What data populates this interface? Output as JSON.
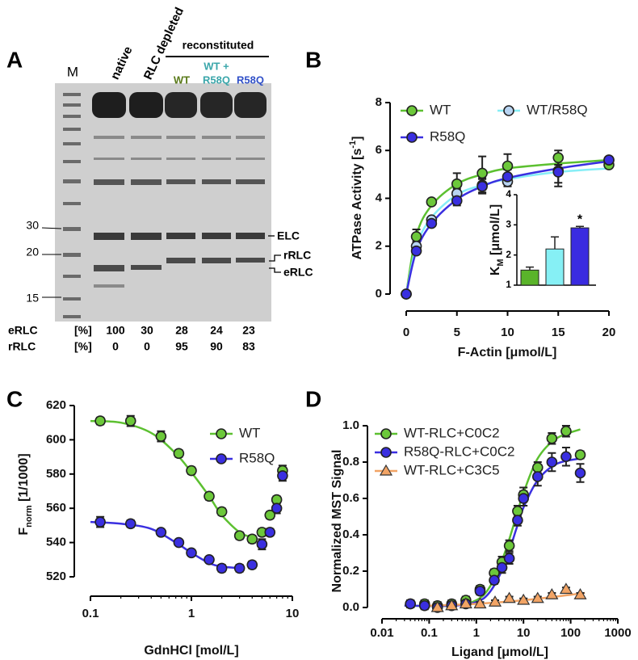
{
  "gel": {
    "panel_label": "A",
    "marker_label": "M",
    "lanes": [
      "native",
      "RLC depleted"
    ],
    "group_label": "reconstituted",
    "group_lanes": [
      [
        "WT"
      ],
      [
        "WT +",
        "R58Q"
      ],
      [
        "R58Q"
      ]
    ],
    "marker_sizes": [
      "30",
      "20",
      "15"
    ],
    "band_labels": [
      "ELC",
      "rRLC",
      "eRLC"
    ],
    "table": {
      "rows": [
        [
          "eRLC",
          "[%]",
          100,
          30,
          28,
          24,
          23
        ],
        [
          "rRLC",
          "[%]",
          0,
          0,
          95,
          90,
          83
        ]
      ]
    }
  },
  "chart_data": [
    {
      "type": "scatter",
      "panel_label": "B",
      "x_label": "F-Actin [μmol/L]",
      "y_label": [
        "ATPase Activity [s",
        "-1",
        "]"
      ],
      "y_label_script": "sup",
      "xlim": [
        0,
        20
      ],
      "ylim": [
        0,
        8
      ],
      "xticks": [
        0,
        5,
        10,
        15,
        20
      ],
      "yticks": [
        0,
        2,
        4,
        6,
        8
      ],
      "legend": "top-left",
      "series": [
        {
          "name": "WT",
          "color": "#6cc83a",
          "line_color": "#5cc030",
          "marker": "circle",
          "x": [
            0,
            1,
            2.5,
            5,
            7.5,
            10,
            15,
            20
          ],
          "values": [
            0,
            2.4,
            3.85,
            4.6,
            5.05,
            5.35,
            5.7,
            5.4
          ],
          "errors": [
            0,
            0.3,
            0.1,
            0.45,
            0.7,
            0.5,
            0.3,
            0.1
          ],
          "fit": {
            "x": [
              0,
              1,
              2.5,
              5,
              7.5,
              10,
              15,
              20
            ],
            "values": [
              0,
              2.45,
              3.7,
              4.6,
              5.0,
              5.25,
              5.45,
              5.6
            ]
          }
        },
        {
          "name": "WT/R58Q",
          "color": "#b8d4f2",
          "line_color": "#86eef6",
          "marker": "circle",
          "x": [
            0,
            1,
            2.5,
            5,
            7.5,
            10,
            15,
            20
          ],
          "values": [
            0,
            2.0,
            3.1,
            4.2,
            4.55,
            4.7,
            5.15,
            5.6
          ],
          "errors": [
            0,
            0.2,
            0.1,
            0.2,
            0.3,
            0.2,
            0.5,
            0.1
          ],
          "fit": {
            "x": [
              0,
              1,
              2.5,
              5,
              7.5,
              10,
              15,
              20
            ],
            "values": [
              0,
              2.0,
              3.2,
              4.15,
              4.55,
              4.8,
              5.1,
              5.25
            ]
          }
        },
        {
          "name": "R58Q",
          "color": "#3a2fe0",
          "line_color": "#3a2fe0",
          "marker": "circle",
          "x": [
            0,
            1,
            2.5,
            5,
            7.5,
            10,
            15,
            20
          ],
          "values": [
            0,
            1.8,
            2.95,
            3.9,
            4.5,
            4.9,
            5.1,
            5.6
          ],
          "errors": [
            0,
            0.1,
            0.1,
            0.2,
            0.3,
            0.3,
            0.6,
            0.1
          ],
          "fit": {
            "x": [
              0,
              1,
              2.5,
              5,
              7.5,
              10,
              15,
              20
            ],
            "values": [
              0,
              1.8,
              2.95,
              3.95,
              4.5,
              4.85,
              5.25,
              5.55
            ]
          }
        }
      ]
    },
    {
      "type": "bar",
      "y_label": [
        "K",
        "M",
        " [μmol/L]"
      ],
      "y_label_script": "sub",
      "categories": [
        null,
        null,
        null
      ],
      "values": [
        1.5,
        2.2,
        2.9
      ],
      "errors": [
        0.1,
        0.4,
        0.05
      ],
      "colors": [
        "#5ab42a",
        "#86f0f5",
        "#3a2be0"
      ],
      "ylim": [
        1,
        4
      ],
      "yticks": [
        1,
        2,
        3,
        4
      ],
      "annotation": "*"
    },
    {
      "type": "scatter",
      "panel_label": "C",
      "x_label": "GdnHCl [mol/L]",
      "y_label": [
        "F",
        "norm",
        " [1/1000]"
      ],
      "y_label_script": "sub",
      "xscale": "log",
      "xlim": [
        0.1,
        10
      ],
      "ylim": [
        515,
        625
      ],
      "xticks": [
        0.1,
        1,
        10
      ],
      "yticks": [
        520,
        540,
        560,
        580,
        600,
        620
      ],
      "legend": "top-right",
      "series": [
        {
          "name": "WT",
          "color": "#6cc83a",
          "line_color": "#5cc030",
          "marker": "circle",
          "x": [
            0.125,
            0.25,
            0.5,
            0.75,
            1,
            1.5,
            2,
            3,
            4,
            5,
            6,
            7,
            8
          ],
          "values": [
            611,
            611,
            602,
            592,
            582,
            567,
            558,
            544,
            542,
            546,
            556,
            565,
            582
          ],
          "errors": [
            2,
            3,
            3,
            2,
            2,
            2,
            2,
            2,
            2,
            2,
            2,
            2,
            3
          ],
          "fit": {
            "x": [
              0.1,
              0.2,
              0.4,
              0.7,
              1,
              1.5,
              2,
              3,
              4
            ],
            "values": [
              611,
              610,
              604,
              592,
              581,
              567,
              556,
              546,
              543
            ]
          }
        },
        {
          "name": "R58Q",
          "color": "#3a2fe0",
          "line_color": "#3a2fe0",
          "marker": "circle",
          "x": [
            0.125,
            0.25,
            0.5,
            0.75,
            1,
            1.5,
            2,
            3,
            4,
            5,
            6,
            7,
            8
          ],
          "values": [
            552,
            551,
            546,
            540,
            534,
            530,
            525,
            525,
            527,
            539,
            546,
            560,
            579
          ],
          "errors": [
            3,
            2,
            1,
            1,
            1,
            1,
            2,
            2,
            2,
            3,
            2,
            3,
            3
          ],
          "fit": {
            "x": [
              0.1,
              0.2,
              0.4,
              0.7,
              1,
              1.5,
              2,
              3
            ],
            "values": [
              552,
              551,
              548,
              540,
              534,
              528,
              526,
              525
            ]
          }
        }
      ]
    },
    {
      "type": "scatter",
      "panel_label": "D",
      "x_label": "Ligand [μmol/L]",
      "y_label": [
        "Normalized MST Signal"
      ],
      "xscale": "log",
      "xlim": [
        0.01,
        1000
      ],
      "ylim": [
        -0.04,
        1.04
      ],
      "xticks": [
        0.01,
        0.1,
        1,
        10,
        100,
        1000
      ],
      "yticks": [
        {
          "value": 0,
          "label": "0.0"
        },
        0.2,
        0.4,
        0.6,
        0.8,
        {
          "value": 1,
          "label": "1.0"
        }
      ],
      "legend": "top-left",
      "series": [
        {
          "name": "WT-RLC+C0C2",
          "color": "#6cc83a",
          "line_color": "#5cc030",
          "marker": "circle",
          "x": [
            0.04,
            0.08,
            0.15,
            0.3,
            0.6,
            1.2,
            2.4,
            3.5,
            5,
            7.5,
            10,
            20,
            40,
            80,
            160
          ],
          "values": [
            0.02,
            0.02,
            0.01,
            0.02,
            0.04,
            0.1,
            0.19,
            0.25,
            0.34,
            0.53,
            0.62,
            0.77,
            0.93,
            0.97,
            0.84
          ],
          "errors": [
            0.02,
            0.02,
            0.02,
            0.02,
            0.02,
            0.02,
            0.02,
            0.03,
            0.03,
            0.03,
            0.04,
            0.03,
            0.03,
            0.03,
            0.02
          ],
          "fit": {
            "x": [
              0.03,
              0.3,
              1,
              2,
              4,
              7,
              10,
              20,
              50,
              160
            ],
            "values": [
              0.01,
              0.01,
              0.04,
              0.12,
              0.3,
              0.5,
              0.63,
              0.82,
              0.93,
              0.98
            ]
          }
        },
        {
          "name": "R58Q-RLC+C0C2",
          "color": "#3a2fe0",
          "line_color": "#3a2fe0",
          "marker": "circle",
          "x": [
            0.04,
            0.08,
            0.15,
            0.3,
            0.6,
            1.2,
            2.4,
            3.5,
            5,
            7.5,
            10,
            20,
            40,
            80,
            160
          ],
          "values": [
            0.02,
            0.01,
            0.0,
            0.01,
            0.02,
            0.09,
            0.15,
            0.22,
            0.27,
            0.48,
            0.6,
            0.72,
            0.8,
            0.83,
            0.74
          ],
          "errors": [
            0.02,
            0.02,
            0.02,
            0.02,
            0.02,
            0.02,
            0.02,
            0.03,
            0.03,
            0.03,
            0.04,
            0.05,
            0.05,
            0.05,
            0.05
          ],
          "fit": {
            "x": [
              0.03,
              0.3,
              1,
              2,
              4,
              7,
              10,
              20,
              50,
              160
            ],
            "values": [
              0.01,
              0.01,
              0.03,
              0.09,
              0.24,
              0.43,
              0.55,
              0.7,
              0.79,
              0.82
            ]
          }
        },
        {
          "name": "WT-RLC+C3C5",
          "color": "#f2a465",
          "line_color": "#f2a465",
          "marker": "triangle",
          "x": [
            0.15,
            0.3,
            0.6,
            1.2,
            2.5,
            5,
            10,
            20,
            40,
            80,
            160
          ],
          "values": [
            0.0,
            0.01,
            0.02,
            0.02,
            0.03,
            0.05,
            0.04,
            0.05,
            0.07,
            0.1,
            0.07
          ],
          "errors": [
            0.01,
            0.01,
            0.01,
            0.01,
            0.01,
            0.01,
            0.01,
            0.01,
            0.01,
            0.01,
            0.01
          ],
          "fit": {
            "x": [
              0.1,
              1,
              10,
              100,
              200
            ],
            "values": [
              0.01,
              0.02,
              0.04,
              0.07,
              0.08
            ]
          }
        }
      ]
    }
  ]
}
